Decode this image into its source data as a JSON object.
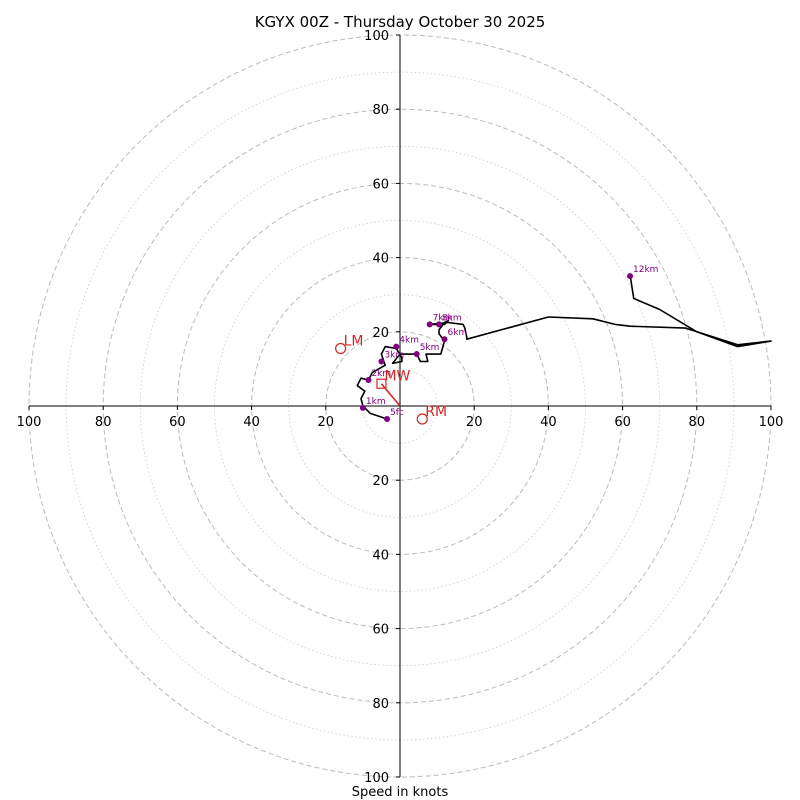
{
  "chart_data": {
    "type": "hodograph",
    "title": "KGYX 00Z - Thursday October 30 2025",
    "xlabel": "Speed in knots",
    "units": "knots",
    "axis_range": [
      -100,
      100
    ],
    "ring_step_major": 20,
    "ring_step_minor": 10,
    "x_tick_labels": [
      "100",
      "80",
      "60",
      "40",
      "20",
      "20",
      "40",
      "60",
      "80",
      "100"
    ],
    "y_tick_labels": [
      "100",
      "80",
      "60",
      "40",
      "20",
      "20",
      "40",
      "60",
      "80",
      "100"
    ],
    "hodograph_trace_uv": [
      [
        -3.5,
        -3.5
      ],
      [
        -8,
        -2
      ],
      [
        -10,
        0
      ],
      [
        -10.5,
        2
      ],
      [
        -9.5,
        4
      ],
      [
        -11.5,
        5.5
      ],
      [
        -10.5,
        7.5
      ],
      [
        -8.5,
        7
      ],
      [
        -7.5,
        9
      ],
      [
        -4,
        11
      ],
      [
        -5,
        14
      ],
      [
        -4,
        16
      ],
      [
        -1,
        15.5
      ],
      [
        0.5,
        13
      ],
      [
        0.5,
        12
      ],
      [
        -2,
        11.5
      ],
      [
        0,
        14
      ],
      [
        1,
        14
      ],
      [
        4.5,
        14
      ],
      [
        5,
        13
      ],
      [
        5.5,
        12
      ],
      [
        7.5,
        12
      ],
      [
        7,
        14
      ],
      [
        11,
        14
      ],
      [
        12,
        17.5
      ],
      [
        10.5,
        19.5
      ],
      [
        10.5,
        20.5
      ],
      [
        12,
        22.5
      ],
      [
        13,
        23
      ],
      [
        12,
        22
      ],
      [
        10.5,
        22
      ],
      [
        8,
        22
      ],
      [
        13,
        22.5
      ],
      [
        17,
        22
      ],
      [
        17.5,
        21
      ],
      [
        18,
        18.5
      ],
      [
        18,
        18
      ],
      [
        40,
        24
      ],
      [
        52,
        23.5
      ],
      [
        58,
        22
      ],
      [
        62,
        21.5
      ],
      [
        77,
        21
      ],
      [
        91,
        16.5
      ],
      [
        100,
        17.5
      ],
      [
        91,
        16
      ],
      [
        80,
        20
      ],
      [
        70,
        26
      ],
      [
        63,
        29
      ],
      [
        62,
        35.5
      ]
    ],
    "height_markers": [
      {
        "label": "5fc",
        "u": -3.5,
        "v": -3.5
      },
      {
        "label": "1km",
        "u": -10,
        "v": -0.5
      },
      {
        "label": "2km",
        "u": -8.5,
        "v": 7
      },
      {
        "label": "3km",
        "u": -5,
        "v": 12
      },
      {
        "label": "4km",
        "u": -1,
        "v": 16
      },
      {
        "label": "5km",
        "u": 4.5,
        "v": 14
      },
      {
        "label": "6km",
        "u": 12,
        "v": 18
      },
      {
        "label": "7km",
        "u": 8,
        "v": 22
      },
      {
        "label": "8km",
        "u": 10.5,
        "v": 22
      },
      {
        "label": "12km",
        "u": 62,
        "v": 35
      }
    ],
    "storm_motion": [
      {
        "label": "LM",
        "u": -16,
        "v": 15.5,
        "marker": "circle"
      },
      {
        "label": "MW",
        "u": -5,
        "v": 6,
        "marker": "square"
      },
      {
        "label": "RM",
        "u": 6,
        "v": -3.5,
        "marker": "circle"
      }
    ],
    "mean_wind_vector": {
      "from": [
        0,
        0
      ],
      "to": [
        -5,
        6
      ]
    },
    "colors": {
      "trace": "#000000",
      "height_marker": "#800080",
      "storm_motion": "#d62728",
      "ring": "#bbbbbb",
      "axis": "#000000"
    }
  }
}
